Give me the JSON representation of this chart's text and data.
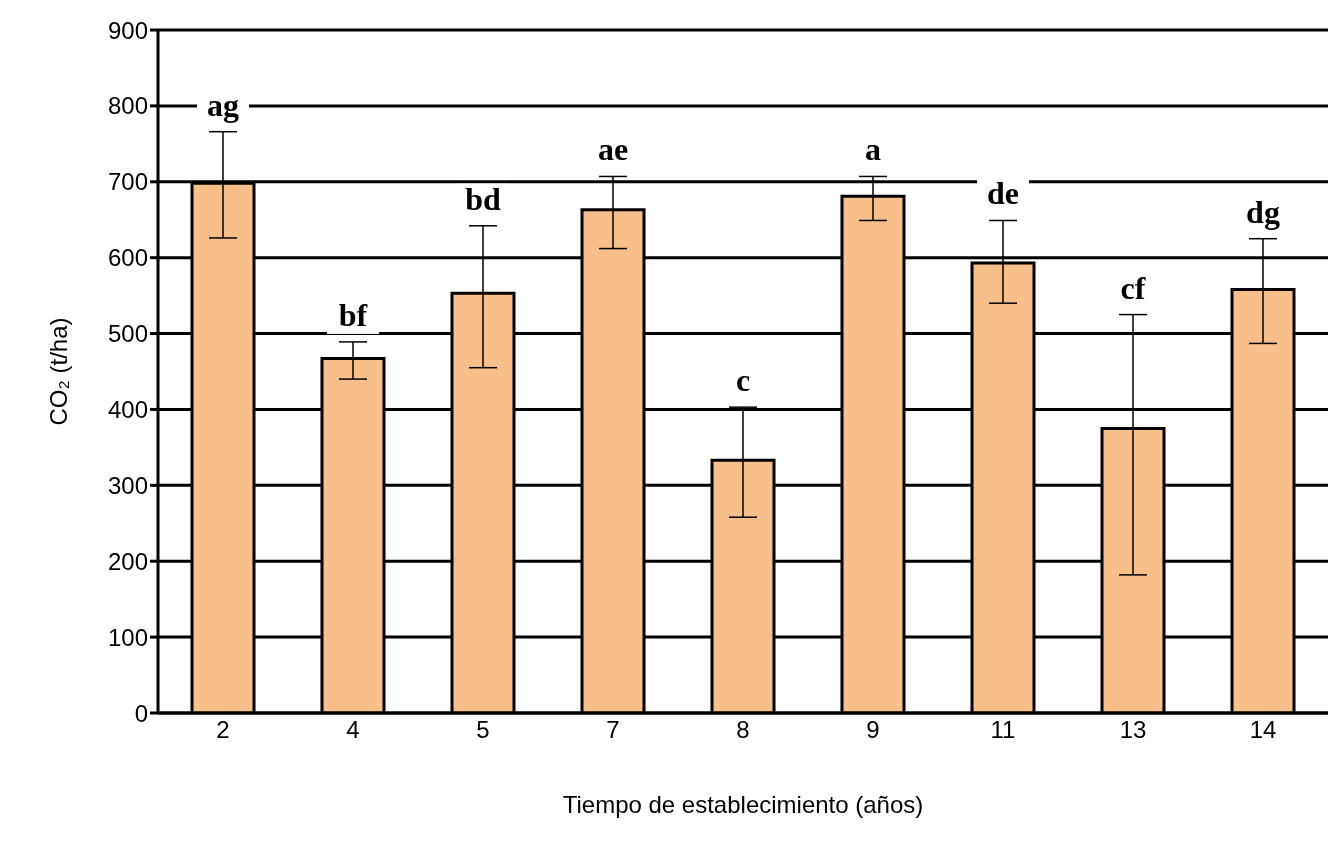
{
  "chart_data": {
    "type": "bar",
    "xlabel": "Tiempo de establecimiento (años)",
    "ylabel": "CO₂ (t/ha)",
    "categories": [
      "2",
      "4",
      "5",
      "7",
      "8",
      "9",
      "11",
      "13",
      "14"
    ],
    "values": [
      698,
      467,
      553,
      663,
      333,
      681,
      593,
      375,
      558
    ],
    "errors": [
      [
        626,
        766
      ],
      [
        440,
        489
      ],
      [
        455,
        642
      ],
      [
        612,
        707
      ],
      [
        258,
        403
      ],
      [
        649,
        707
      ],
      [
        540,
        649
      ],
      [
        182,
        525
      ],
      [
        487,
        625
      ]
    ],
    "color": "#f8bf8a",
    "ylim": [
      0,
      900
    ],
    "yticks": [
      0,
      100,
      200,
      300,
      400,
      500,
      600,
      700,
      800,
      900
    ],
    "grid": "y",
    "annotations": [
      {
        "text": "ag",
        "x": "2",
        "y": 766
      },
      {
        "text": "bf",
        "x": "4",
        "y": 489
      },
      {
        "text": "bd",
        "x": "5",
        "y": 642
      },
      {
        "text": "ae",
        "x": "7",
        "y": 707
      },
      {
        "text": "c",
        "x": "8",
        "y": 403
      },
      {
        "text": "a",
        "x": "9",
        "y": 707
      },
      {
        "text": "de",
        "x": "11",
        "y": 649
      },
      {
        "text": "cf",
        "x": "13",
        "y": 525
      },
      {
        "text": "dg",
        "x": "14",
        "y": 625
      }
    ]
  }
}
